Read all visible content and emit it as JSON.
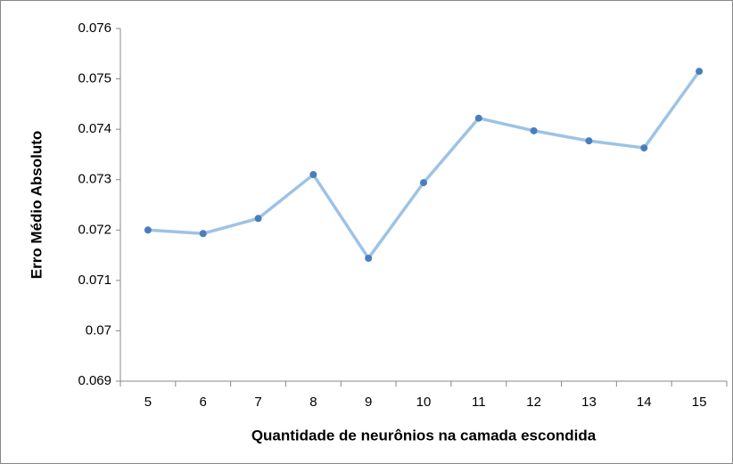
{
  "chart_data": {
    "type": "line",
    "xlabel": "Quantidade de neurônios na camada escondida",
    "ylabel": "Erro Médio Absoluto",
    "categories": [
      "5",
      "6",
      "7",
      "8",
      "9",
      "10",
      "11",
      "12",
      "13",
      "14",
      "15"
    ],
    "series": [
      {
        "name": "Erro Médio Absoluto",
        "color": "#9dc3e6",
        "marker_color": "#4a7ebb",
        "values": [
          0.072,
          0.07193,
          0.07223,
          0.0731,
          0.07144,
          0.07294,
          0.07422,
          0.07397,
          0.07377,
          0.07363,
          0.07515
        ]
      }
    ],
    "ylim": [
      0.069,
      0.076
    ],
    "yticks": [
      0.069,
      0.07,
      0.071,
      0.072,
      0.073,
      0.074,
      0.075,
      0.076
    ],
    "grid": false
  }
}
